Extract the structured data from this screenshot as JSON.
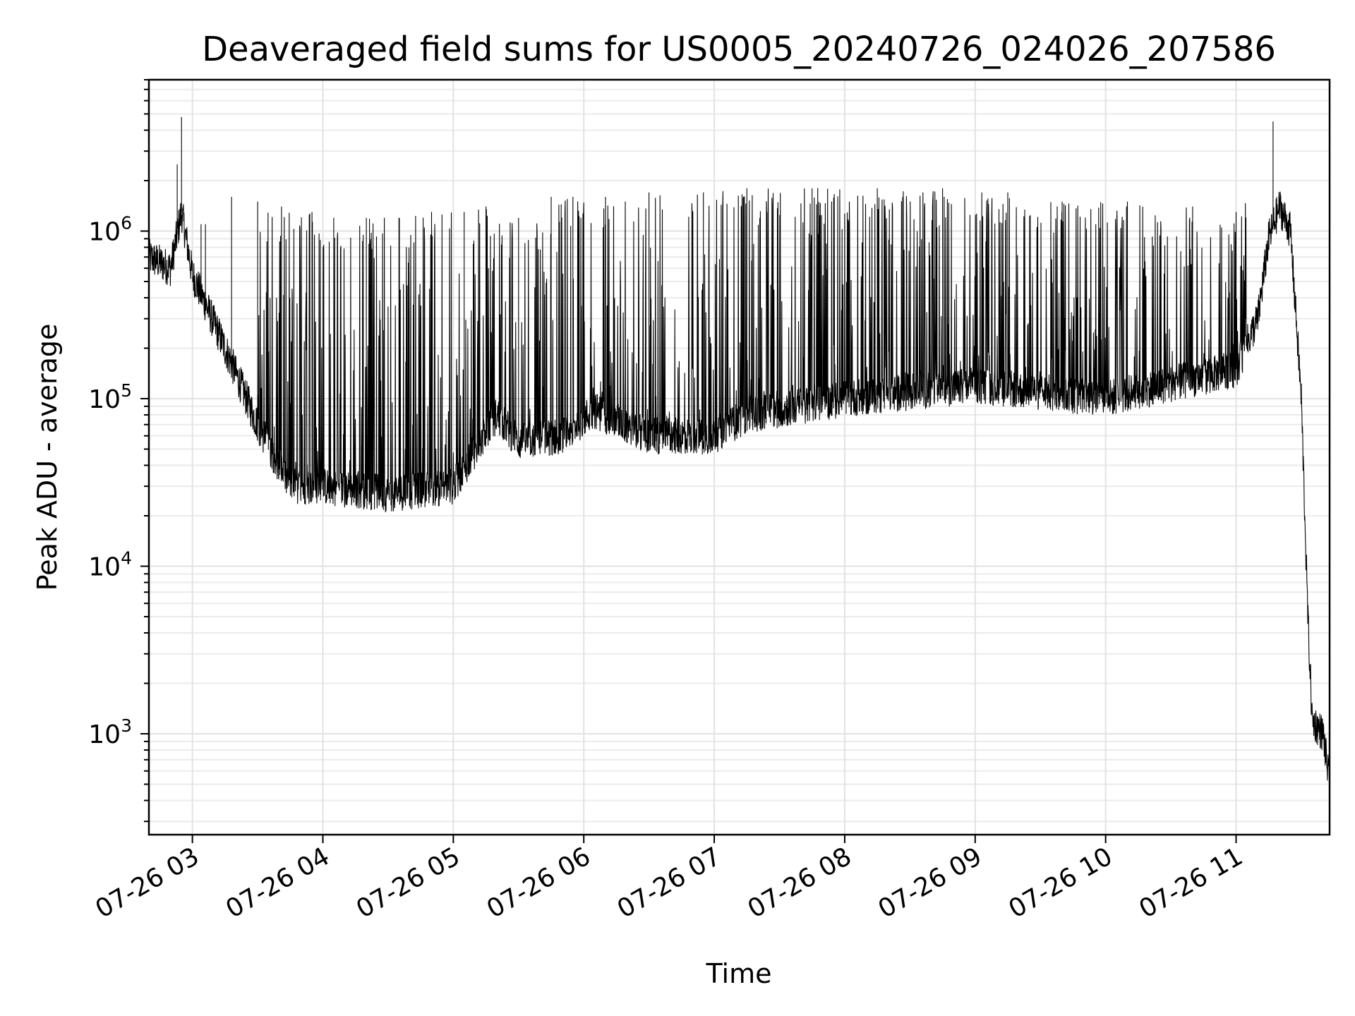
{
  "chart_data": {
    "type": "line",
    "title": "Deaveraged field sums for US0005_20240726_024026_207586",
    "xlabel": "Time",
    "ylabel": "Peak ADU - average",
    "yscale": "log",
    "ylim": [
      250,
      8000000
    ],
    "xlim": [
      "2024-07-26 02:40",
      "2024-07-26 11:43"
    ],
    "grid": true,
    "line_color": "#000000",
    "x_ticks": [
      {
        "t": "2024-07-26 03:00",
        "label": "07-26 03"
      },
      {
        "t": "2024-07-26 04:00",
        "label": "07-26 04"
      },
      {
        "t": "2024-07-26 05:00",
        "label": "07-26 05"
      },
      {
        "t": "2024-07-26 06:00",
        "label": "07-26 06"
      },
      {
        "t": "2024-07-26 07:00",
        "label": "07-26 07"
      },
      {
        "t": "2024-07-26 08:00",
        "label": "07-26 08"
      },
      {
        "t": "2024-07-26 09:00",
        "label": "07-26 09"
      },
      {
        "t": "2024-07-26 10:00",
        "label": "07-26 10"
      },
      {
        "t": "2024-07-26 11:00",
        "label": "07-26 11"
      }
    ],
    "y_ticks": [
      {
        "value": 1000,
        "base": "10",
        "exp": "3"
      },
      {
        "value": 10000,
        "base": "10",
        "exp": "4"
      },
      {
        "value": 100000,
        "base": "10",
        "exp": "5"
      },
      {
        "value": 1000000,
        "base": "10",
        "exp": "6"
      }
    ],
    "series": [
      {
        "baseline": [
          {
            "t": "2024-07-26 02:40",
            "y": 700000
          },
          {
            "t": "2024-07-26 02:50",
            "y": 600000
          },
          {
            "t": "2024-07-26 02:55",
            "y": 1300000
          },
          {
            "t": "2024-07-26 03:00",
            "y": 550000
          },
          {
            "t": "2024-07-26 03:15",
            "y": 200000
          },
          {
            "t": "2024-07-26 03:30",
            "y": 70000
          },
          {
            "t": "2024-07-26 03:45",
            "y": 30000
          },
          {
            "t": "2024-07-26 04:00",
            "y": 30000
          },
          {
            "t": "2024-07-26 04:30",
            "y": 27000
          },
          {
            "t": "2024-07-26 05:00",
            "y": 30000
          },
          {
            "t": "2024-07-26 05:20",
            "y": 80000
          },
          {
            "t": "2024-07-26 05:30",
            "y": 55000
          },
          {
            "t": "2024-07-26 05:50",
            "y": 60000
          },
          {
            "t": "2024-07-26 06:05",
            "y": 85000
          },
          {
            "t": "2024-07-26 06:30",
            "y": 60000
          },
          {
            "t": "2024-07-26 07:00",
            "y": 60000
          },
          {
            "t": "2024-07-26 07:15",
            "y": 80000
          },
          {
            "t": "2024-07-26 08:00",
            "y": 100000
          },
          {
            "t": "2024-07-26 09:00",
            "y": 120000
          },
          {
            "t": "2024-07-26 10:00",
            "y": 100000
          },
          {
            "t": "2024-07-26 11:00",
            "y": 150000
          },
          {
            "t": "2024-07-26 11:10",
            "y": 300000
          },
          {
            "t": "2024-07-26 11:15",
            "y": 900000
          },
          {
            "t": "2024-07-26 11:20",
            "y": 1400000
          },
          {
            "t": "2024-07-26 11:25",
            "y": 1000000
          },
          {
            "t": "2024-07-26 11:30",
            "y": 100000
          },
          {
            "t": "2024-07-26 11:33",
            "y": 5000
          },
          {
            "t": "2024-07-26 11:35",
            "y": 1200
          },
          {
            "t": "2024-07-26 11:40",
            "y": 1000
          },
          {
            "t": "2024-07-26 11:43",
            "y": 500
          }
        ],
        "spikes": [
          {
            "t": "2024-07-26 02:53",
            "y": 2500000
          },
          {
            "t": "2024-07-26 02:55",
            "y": 4800000
          },
          {
            "t": "2024-07-26 03:04",
            "y": 1100000
          },
          {
            "t": "2024-07-26 03:06",
            "y": 1100000
          },
          {
            "t": "2024-07-26 03:18",
            "y": 1600000
          },
          {
            "t": "2024-07-26 03:30",
            "y": 1500000
          },
          {
            "t": "2024-07-26 03:41",
            "y": 1400000
          },
          {
            "t": "2024-07-26 03:55",
            "y": 1300000
          },
          {
            "t": "2024-07-26 04:05",
            "y": 1200000
          },
          {
            "t": "2024-07-26 04:20",
            "y": 1200000
          },
          {
            "t": "2024-07-26 04:35",
            "y": 1200000
          },
          {
            "t": "2024-07-26 04:50",
            "y": 1300000
          },
          {
            "t": "2024-07-26 05:05",
            "y": 1300000
          },
          {
            "t": "2024-07-26 05:15",
            "y": 1400000
          },
          {
            "t": "2024-07-26 05:30",
            "y": 1200000
          },
          {
            "t": "2024-07-26 05:45",
            "y": 1600000
          },
          {
            "t": "2024-07-26 05:55",
            "y": 1600000
          },
          {
            "t": "2024-07-26 06:10",
            "y": 1600000
          },
          {
            "t": "2024-07-26 06:30",
            "y": 1700000
          },
          {
            "t": "2024-07-26 06:55",
            "y": 1700000
          },
          {
            "t": "2024-07-26 07:15",
            "y": 1800000
          },
          {
            "t": "2024-07-26 07:45",
            "y": 1800000
          },
          {
            "t": "2024-07-26 08:15",
            "y": 1800000
          },
          {
            "t": "2024-07-26 08:45",
            "y": 1800000
          },
          {
            "t": "2024-07-26 09:15",
            "y": 1700000
          },
          {
            "t": "2024-07-26 09:40",
            "y": 1500000
          },
          {
            "t": "2024-07-26 10:10",
            "y": 1500000
          },
          {
            "t": "2024-07-26 10:40",
            "y": 1400000
          },
          {
            "t": "2024-07-26 11:00",
            "y": 1300000
          },
          {
            "t": "2024-07-26 11:17",
            "y": 4500000
          }
        ]
      }
    ]
  }
}
